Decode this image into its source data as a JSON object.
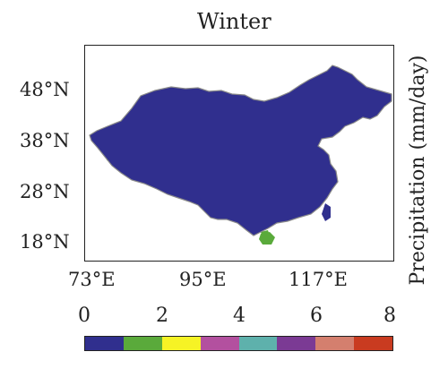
{
  "title": "Winter",
  "units_label": "Precipitation (mm/day)",
  "lat_labels": [
    "48°N",
    "38°N",
    "28°N",
    "18°N"
  ],
  "lon_labels": [
    "73°E",
    "95°E",
    "117°E"
  ],
  "colorbar": {
    "ticks": [
      "0",
      "2",
      "4",
      "6",
      "8"
    ],
    "range": [
      0,
      8
    ],
    "bin_width": 1,
    "colors": [
      "#302f8e",
      "#5aaa3b",
      "#f6f325",
      "#b3509f",
      "#5eb1ac",
      "#7b3a94",
      "#d47f6e",
      "#c93b20"
    ]
  },
  "map": {
    "region": "China",
    "background_fill": "#302f8e",
    "field_colors": {
      "low": "#302f8e",
      "light": "#5aaa3b",
      "moderate": "#f6f325",
      "heavy": "#b3509f"
    },
    "boundary_color": "#8a8a8a"
  }
}
